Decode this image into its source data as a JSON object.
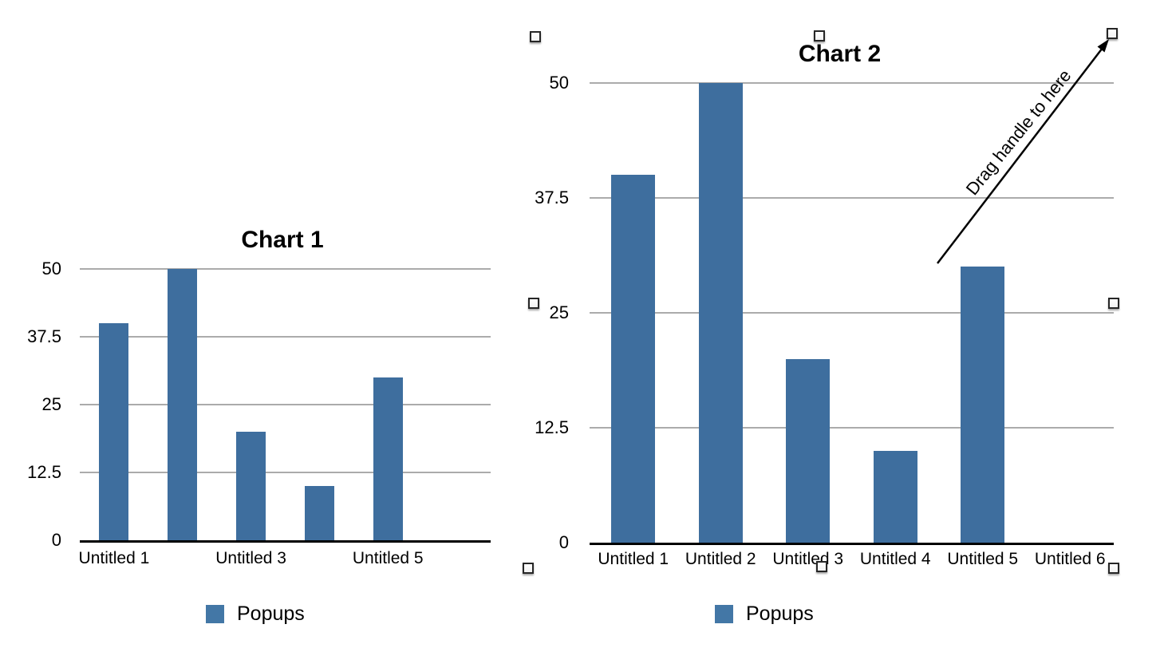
{
  "app": {
    "background": "#ffffff"
  },
  "colors": {
    "bar": "#3E6E9E",
    "legend_swatch": "#4377A6",
    "gridline": "#ABABAB",
    "axis": "#000000",
    "annotation": "#000000",
    "handle_fill": "#FFFFFF",
    "handle_border": "#262626"
  },
  "chart_data": [
    {
      "type": "bar",
      "title": "Chart 1",
      "categories": [
        "Untitled 1",
        "Untitled 2",
        "Untitled 3",
        "Untitled 4",
        "Untitled 5",
        "Untitled 6"
      ],
      "shown_category_indexes": [
        0,
        2,
        4
      ],
      "series": [
        {
          "name": "Popups",
          "color": "#3E6E9E",
          "values": [
            40,
            50,
            20,
            10,
            30,
            null
          ]
        }
      ],
      "xlabel": "",
      "ylabel": "",
      "ylim": [
        0,
        50
      ],
      "y_ticks": [
        0,
        12.5,
        25,
        37.5,
        50
      ],
      "y_tick_labels_top_down": [
        "50",
        "37.5",
        "25",
        "12.5",
        "0"
      ],
      "grid": true,
      "legend": {
        "label": "Popups",
        "swatch_color": "#4377A6",
        "position": "bottom"
      },
      "selected": false
    },
    {
      "type": "bar",
      "title": "Chart 2",
      "categories": [
        "Untitled 1",
        "Untitled 2",
        "Untitled 3",
        "Untitled 4",
        "Untitled 5",
        "Untitled 6"
      ],
      "shown_category_indexes": [
        0,
        1,
        2,
        3,
        4,
        5
      ],
      "series": [
        {
          "name": "Popups",
          "color": "#3E6E9E",
          "values": [
            40,
            50,
            20,
            10,
            30,
            null
          ]
        }
      ],
      "xlabel": "",
      "ylabel": "",
      "ylim": [
        0,
        50
      ],
      "y_ticks": [
        0,
        12.5,
        25,
        37.5,
        50
      ],
      "y_tick_labels_top_down": [
        "50",
        "37.5",
        "25",
        "12.5",
        "0"
      ],
      "grid": true,
      "legend": {
        "label": "Popups",
        "swatch_color": "#4377A6",
        "position": "bottom"
      },
      "selected": true,
      "selection_handles": [
        "top-left",
        "top-center",
        "top-right",
        "middle-left",
        "middle-right",
        "bottom-left",
        "bottom-center",
        "bottom-right"
      ],
      "annotation": {
        "text": "Drag handle to here",
        "target_handle": "top-right"
      }
    }
  ]
}
